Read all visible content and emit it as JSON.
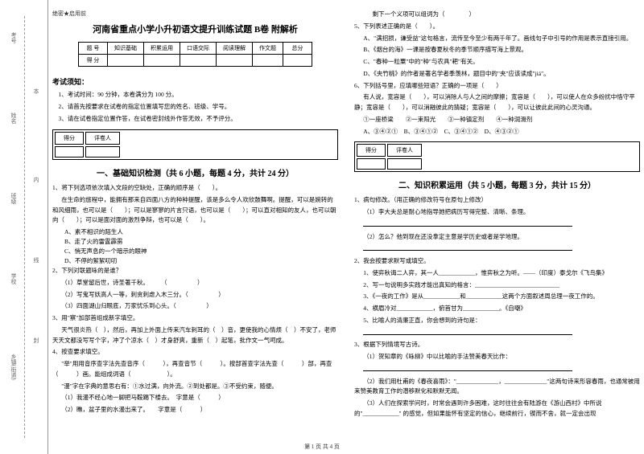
{
  "binding": {
    "labels": {
      "exam": "考号",
      "name": "姓名",
      "class": "班级",
      "school": "学校",
      "village": "乡镇(街道)"
    },
    "folds": {
      "f1": "本",
      "f2": "内",
      "f3": "线",
      "f4": "封"
    }
  },
  "header": {
    "confidential": "绝密★启用前",
    "title": "河南省重点小学小升初语文提升训练试题 B卷 附解析"
  },
  "scoreTable": {
    "row1": [
      "题 号",
      "知识基础",
      "积累运用",
      "口语交际",
      "阅读理解",
      "作文题",
      "总分"
    ],
    "row2": [
      "得 分",
      "",
      "",
      "",
      "",
      "",
      ""
    ]
  },
  "notice": {
    "title": "考试须知：",
    "items": [
      "1、考试时间：90 分钟，本卷满分为 100 分。",
      "2、请首先按要求在试卷的指定位置填写您的姓名、班级、学号。",
      "3、请在试卷指定位置作答，在试卷密封线外作答无效，不予评分。"
    ]
  },
  "sectionBox": {
    "c1": "得分",
    "c2": "评卷人"
  },
  "section1": {
    "title": "一、基础知识检测（共 6 小题，每题 4 分，共计 24 分）",
    "q1": {
      "stem": "1、将下列选项依次填入文段的空缺处，正确的顺序是（　　）。",
      "passage": "在生命的旅程中，能拥有那来自四面八方的种种提醒，该是多么令人欢欣鼓舞啊。提醒，可以是婉转的和风细雨，也可以是（　　）；可以是寥寥的片言只语，也可以是（　　）；可以直对相知的友人，也可以朝向（　　）；可以是面对面的激烈争辩，也可以是（　　）。",
      "opts": [
        "A、素不相识的陌生人",
        "B、走了火的雷霆霹雳",
        "C、悄无声息的一个暗示的眼神",
        "D、不停的絮絮叨叨"
      ]
    },
    "q2": {
      "stem": "2、下列对联题咏的是谁？",
      "items": [
        "（1）草堂留后世，诗圣著千秋。　　　（　　　　　）",
        "（2）写鬼写妖高人一等，刺贪刺虐入木三分。（　　　　　）",
        "（3）四面湖山归眼底，万家忧乐到心头。（　　　　　）"
      ]
    },
    "q3": {
      "stem": "3、用\"察\"加部首组成新字填空。",
      "line1": "天气很炎热（　），然后，再加上外面上传来汽车刺耳的（　）音，更使我的心情烦（　）不安了，老师天天文都没写写个字，冲了个凉水（　）才身舒爽，重新（　）起笔，批作文一气呵成。"
    },
    "q4": {
      "stem": "4、按查要求填空。",
      "line1": "\"举\"用用音序查字法先查音序（　　　），再查音节（　　　）。按部首查字法先查（　　　）部，再查（　　　）画。能组成词语（　　　　　　）。",
      "line2": "\"漫\"字在字典的意思右有：①水过满，向外流。②到处都是。③不受约束，随便。",
      "line3": "（1）我漫不经心地一脚把马鞍踢下楼去。　字意是（　　　）",
      "line4": "（2）瞧，盆子里的水漫出来了。　　字意是（　　　）"
    }
  },
  "col2": {
    "line1": "剩下一个义项可以组词为（　　　　）",
    "q5": {
      "stem": "5、下列表述正确的是（　　）。",
      "a": "A、\"满招损，谦受益\"这句格言，流传至今至少有两千年了。画线句子中引号的作用是表示直接引用。",
      "b": "B、《烟台的海》一课是按春夏秋冬的季节顺序描写海上景观。",
      "c": "C、\"春种一粒粟\"中的\"种\"与农具\"耙\"有关。",
      "d": "D、《夹竹桃》的作者是著名学者季羡林，题目中的\"夹\"应该读成\"jiá\"。"
    },
    "q6": {
      "stem": "6、下列括号里，应填哪些短语？正确的一项是（　　）",
      "passage": "有人说，宽容是（　　），可以消除人与人之间的摩擦；宽容是（　　），可以使人在众多纷扰中恪守平静；宽容是（　　），可以消融彼此的猜疑；宽容是（　　），可以让彼此此间的心灵沟通。",
      "opts": "①一座桥梁　　②一束阳光　　③一种镇定剂　　④一种润滑剂",
      "choices": "A、③④②①　B、③④①②　C、③④①②　D、④③②①"
    }
  },
  "section2": {
    "title": "二、知识积累运用（共 5 小题，每题 3 分，共计 15 分）",
    "q1": {
      "stem": "1、病句修改。（用正确的修改符号在原句上修改）",
      "line1": "（1）李大夫总是耐心地指导她把病历写得完整、清晰、条理。",
      "blank1": " ",
      "line2": "（2）怎么？他到现在还没拿定主意是学历史或者是学地理。",
      "blank2": " "
    },
    "q2": {
      "stem": "2、我会按要求默写或填空。",
      "line1": "1、使弈秋诲二人弈，其一人____________，惟弈秋之为听。——（印度）泰戈尔《飞鸟集》",
      "line2": "2、写一句说明多实践才能出真知的格言：____________________________",
      "line3": "3、《一夜的工作》是从____________和____________这两个方面叙述周总理一夜工作的。",
      "line4": "4、横眉冷对____________，俯首甘为____________。《自嘲》",
      "line5": "5、比喻人的清廉正直，你会想到的诗句是："
    },
    "q3": {
      "stem": "3、根据下列情境写古诗。",
      "line1": "（1）贺知章的《咏柳》中以比喻的手法赞美春天比作：",
      "blank1": " ",
      "line2": "（2）我们用杜甫的《春夜喜雨》：\"______________，______________\"这两句诗来形容春雨，也通常被用来赞美教育工作的潜移默化和默默无闻。",
      "line3": "（3）人们在探索学问时，时常会遇到许多困难，这时往往会有陆游在《游山西村》中所说的\"____________\" 的感觉，但如果能怀有坚定的信心，继续前行，锲而不舍，就一定会出现"
    }
  },
  "footer": "第 1 页 共 4 页"
}
